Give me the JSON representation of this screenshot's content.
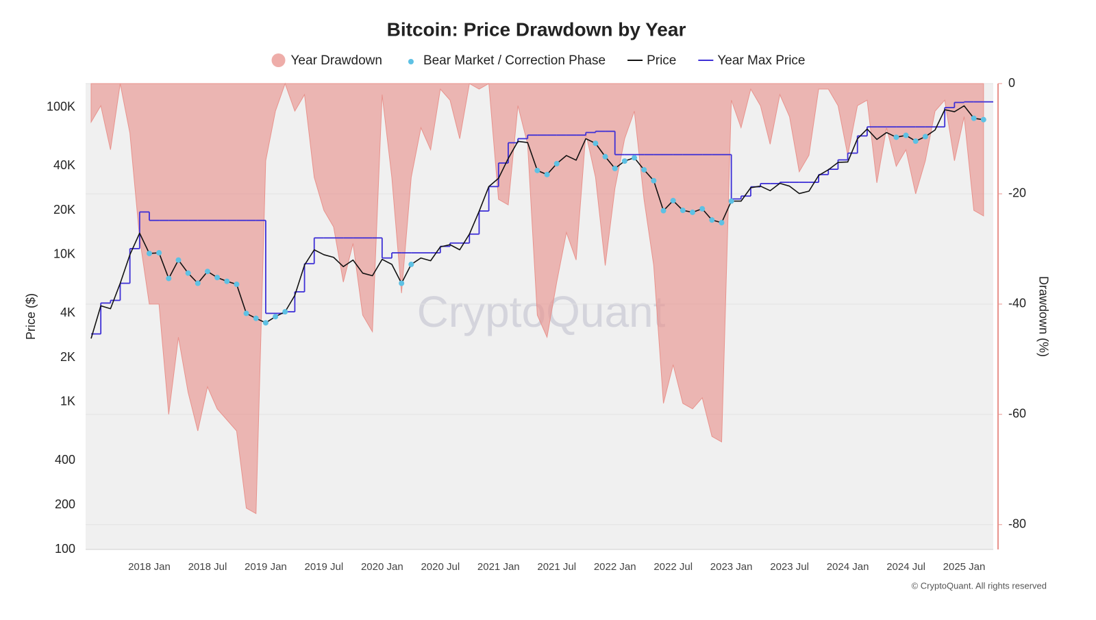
{
  "chart_data": {
    "type": "combo",
    "title": "Bitcoin: Price Drawdown by Year",
    "ylabel": "Price ($)",
    "y2label": "Drawdown (%)",
    "watermark": "CryptoQuant",
    "copyright": "© CryptoQuant. All rights reserved",
    "log_y": true,
    "grid": true,
    "legend": "top",
    "x": [
      "2017-07",
      "2017-08",
      "2017-09",
      "2017-10",
      "2017-11",
      "2017-12",
      "2018-01",
      "2018-02",
      "2018-03",
      "2018-04",
      "2018-05",
      "2018-06",
      "2018-07",
      "2018-08",
      "2018-09",
      "2018-10",
      "2018-11",
      "2018-12",
      "2019-01",
      "2019-02",
      "2019-03",
      "2019-04",
      "2019-05",
      "2019-06",
      "2019-07",
      "2019-08",
      "2019-09",
      "2019-10",
      "2019-11",
      "2019-12",
      "2020-01",
      "2020-02",
      "2020-03",
      "2020-04",
      "2020-05",
      "2020-06",
      "2020-07",
      "2020-08",
      "2020-09",
      "2020-10",
      "2020-11",
      "2020-12",
      "2021-01",
      "2021-02",
      "2021-03",
      "2021-04",
      "2021-05",
      "2021-06",
      "2021-07",
      "2021-08",
      "2021-09",
      "2021-10",
      "2021-11",
      "2021-12",
      "2022-01",
      "2022-02",
      "2022-03",
      "2022-04",
      "2022-05",
      "2022-06",
      "2022-07",
      "2022-08",
      "2022-09",
      "2022-10",
      "2022-11",
      "2022-12",
      "2023-01",
      "2023-02",
      "2023-03",
      "2023-04",
      "2023-05",
      "2023-06",
      "2023-07",
      "2023-08",
      "2023-09",
      "2023-10",
      "2023-11",
      "2023-12",
      "2024-01",
      "2024-02",
      "2024-03",
      "2024-04",
      "2024-05",
      "2024-06",
      "2024-07",
      "2024-08",
      "2024-09",
      "2024-10",
      "2024-11",
      "2024-12",
      "2025-01",
      "2025-02",
      "2025-03"
    ],
    "xlim": [
      "2017-07",
      "2025-04"
    ],
    "xticks": [
      {
        "value": "2018-01",
        "label": "2018 Jan"
      },
      {
        "value": "2018-07",
        "label": "2018 Jul"
      },
      {
        "value": "2019-01",
        "label": "2019 Jan"
      },
      {
        "value": "2019-07",
        "label": "2019 Jul"
      },
      {
        "value": "2020-01",
        "label": "2020 Jan"
      },
      {
        "value": "2020-07",
        "label": "2020 Jul"
      },
      {
        "value": "2021-01",
        "label": "2021 Jan"
      },
      {
        "value": "2021-07",
        "label": "2021 Jul"
      },
      {
        "value": "2022-01",
        "label": "2022 Jan"
      },
      {
        "value": "2022-07",
        "label": "2022 Jul"
      },
      {
        "value": "2023-01",
        "label": "2023 Jan"
      },
      {
        "value": "2023-07",
        "label": "2023 Jul"
      },
      {
        "value": "2024-01",
        "label": "2024 Jan"
      },
      {
        "value": "2024-07",
        "label": "2024 Jul"
      },
      {
        "value": "2025-01",
        "label": "2025 Jan"
      }
    ],
    "ylim": [
      100,
      145000
    ],
    "yticks": [
      100,
      200,
      400,
      {
        "value": 1000,
        "label": "1K"
      },
      {
        "value": 2000,
        "label": "2K"
      },
      {
        "value": 4000,
        "label": "4K"
      },
      {
        "value": 10000,
        "label": "10K"
      },
      {
        "value": 20000,
        "label": "20K"
      },
      {
        "value": 40000,
        "label": "40K"
      },
      {
        "value": 100000,
        "label": "100K"
      }
    ],
    "y2lim": [
      -84.5,
      0
    ],
    "y2ticks": [
      0,
      -20,
      -40,
      -60,
      -80
    ],
    "series": [
      {
        "name": "Year Drawdown",
        "type": "area",
        "axis": "y2",
        "color": "#e8928c",
        "values": [
          -7,
          -4,
          -12,
          0,
          -9,
          -28,
          -40,
          -40,
          -60,
          -46,
          -56,
          -63,
          -55,
          -59,
          -61,
          -63,
          -77,
          -78,
          -14,
          -5,
          0,
          -5,
          -2,
          -17,
          -23,
          -26,
          -36,
          -29,
          -42,
          -45,
          -2,
          -17,
          -38,
          -17,
          -8,
          -12,
          -1,
          -3,
          -10,
          0,
          -1,
          0,
          -21,
          -22,
          -4,
          -11,
          -42,
          -46,
          -36,
          -27,
          -32,
          -9,
          -17,
          -33,
          -19,
          -10,
          -5,
          -21,
          -33,
          -58,
          -51,
          -58,
          -59,
          -57,
          -64,
          -65,
          -3,
          -8,
          -1,
          -4,
          -11,
          -2,
          -6,
          -16,
          -13,
          -1,
          -1,
          -4,
          -13,
          -4,
          -3,
          -18,
          -8,
          -15,
          -12,
          -20,
          -14,
          -5,
          -3,
          -14,
          -6,
          -23,
          -24
        ]
      },
      {
        "name": "Year Max Price",
        "type": "step",
        "color": "#3d2fd6",
        "values": [
          2900,
          4700,
          4900,
          6400,
          11000,
          19500,
          17100,
          17100,
          17100,
          17100,
          17100,
          17100,
          17100,
          17100,
          17100,
          17100,
          17100,
          17100,
          4000,
          4000,
          4100,
          5600,
          8700,
          13000,
          13000,
          13000,
          13000,
          13000,
          13000,
          13000,
          9500,
          10300,
          10300,
          10300,
          10300,
          10300,
          11400,
          12000,
          12000,
          13800,
          19800,
          29000,
          41900,
          57500,
          61300,
          64800,
          64800,
          64800,
          64800,
          64800,
          64800,
          67500,
          68800,
          68800,
          47800,
          47800,
          47800,
          47800,
          47800,
          47800,
          47800,
          47800,
          47800,
          47800,
          47800,
          47800,
          23900,
          25000,
          28900,
          30400,
          30400,
          31000,
          31000,
          31000,
          31000,
          35000,
          38000,
          44000,
          48900,
          64000,
          73700,
          73700,
          73700,
          73700,
          73700,
          73700,
          73700,
          73700,
          99600,
          108000,
          109000,
          109000,
          109000
        ]
      },
      {
        "name": "Price",
        "type": "line",
        "color": "#111111",
        "values": [
          2700,
          4500,
          4300,
          6400,
          10000,
          14000,
          10200,
          10300,
          6900,
          9200,
          7500,
          6400,
          7700,
          7000,
          6600,
          6300,
          4000,
          3700,
          3450,
          3800,
          4100,
          5300,
          8500,
          10800,
          10000,
          9600,
          8300,
          9200,
          7500,
          7200,
          9300,
          8600,
          6400,
          8600,
          9500,
          9100,
          11300,
          11700,
          10800,
          13800,
          19700,
          29000,
          33000,
          45000,
          58800,
          57700,
          37300,
          35000,
          41500,
          47100,
          43800,
          61300,
          57000,
          46300,
          38500,
          43200,
          45500,
          37700,
          31800,
          19900,
          23300,
          20000,
          19400,
          20500,
          17200,
          16500,
          23100,
          23100,
          28500,
          29200,
          27200,
          30500,
          29200,
          26000,
          27000,
          34500,
          37700,
          42300,
          42600,
          61200,
          71300,
          60600,
          67500,
          62700,
          64600,
          59000,
          63300,
          70200,
          96400,
          93400,
          102400,
          84300,
          82500
        ]
      },
      {
        "name": "Bear Market / Correction Phase",
        "type": "scatter",
        "color": "#5ec1e4",
        "values": [
          null,
          null,
          null,
          null,
          null,
          null,
          10200,
          10300,
          6900,
          9200,
          7500,
          6400,
          7700,
          7000,
          6600,
          6300,
          4000,
          3700,
          3450,
          3800,
          4100,
          null,
          null,
          null,
          null,
          null,
          null,
          null,
          null,
          null,
          null,
          null,
          6400,
          8600,
          null,
          null,
          null,
          null,
          null,
          null,
          null,
          null,
          null,
          null,
          null,
          null,
          37300,
          35000,
          41500,
          null,
          null,
          null,
          57000,
          46300,
          38500,
          43200,
          45500,
          37700,
          31800,
          19900,
          23300,
          20000,
          19400,
          20500,
          17200,
          16500,
          23100,
          null,
          null,
          null,
          null,
          null,
          null,
          null,
          null,
          null,
          null,
          null,
          null,
          null,
          null,
          null,
          null,
          62700,
          64600,
          59000,
          63300,
          null,
          null,
          null,
          null,
          84300,
          82500
        ]
      }
    ],
    "legend_order": [
      0,
      3,
      2,
      1
    ]
  }
}
